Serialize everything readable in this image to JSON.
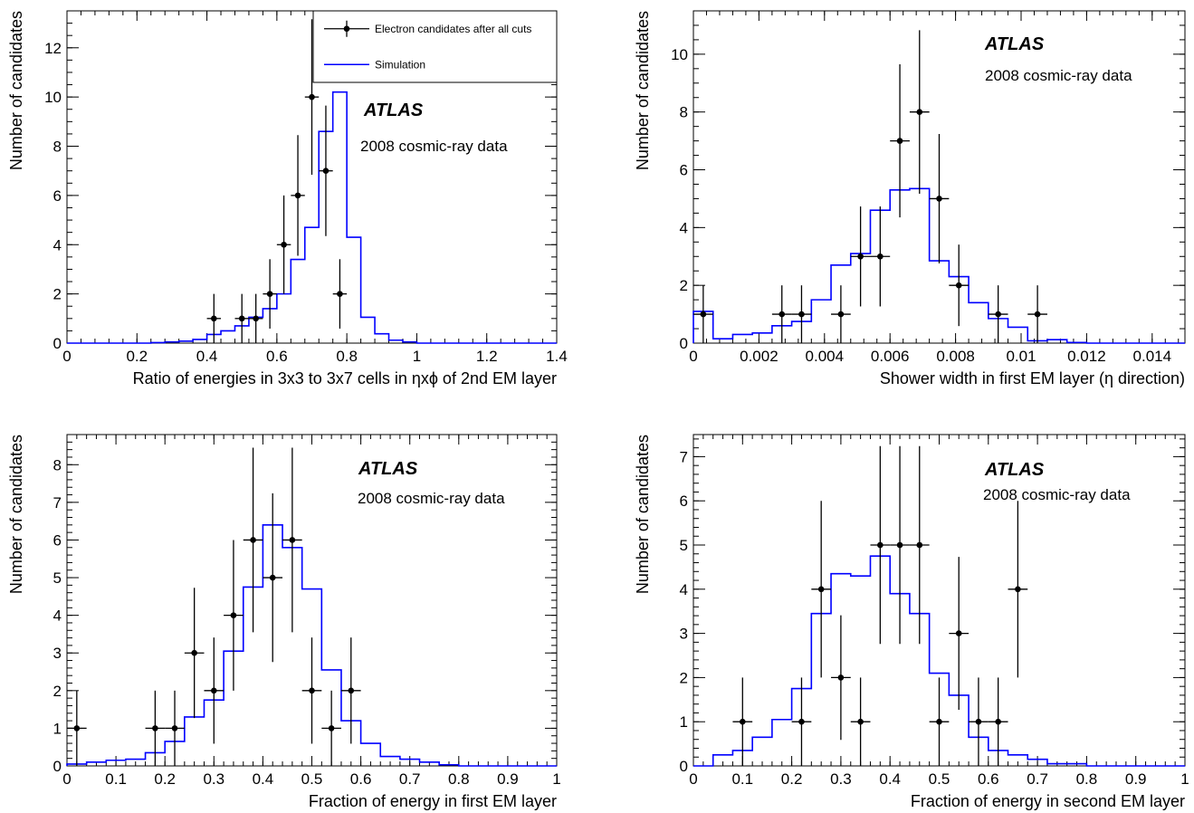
{
  "figure": {
    "panels_count": 4
  },
  "chart_data": [
    {
      "type": "histogram",
      "xlabel": "Ratio of energies in 3x3 to 3x7 cells in ηxϕ of 2nd EM layer",
      "ylabel": "Number of candidates",
      "xlim": [
        0,
        1.4
      ],
      "ylim": [
        0,
        13.5
      ],
      "xticks": [
        0,
        0.2,
        0.4,
        0.6,
        0.8,
        1,
        1.2,
        1.4
      ],
      "xtick_labels": [
        "0",
        "0.2",
        "0.4",
        "0.6",
        "0.8",
        "1",
        "1.2",
        "1.4"
      ],
      "yticks": [
        0,
        2,
        4,
        6,
        8,
        10,
        12
      ],
      "ytick_labels": [
        "0",
        "2",
        "4",
        "6",
        "8",
        "10",
        "12"
      ],
      "atlas_label": "ATLAS",
      "note": "2008 cosmic-ray data",
      "legend": {
        "placement": "top-right",
        "entries": [
          {
            "label": "Electron candidates after all cuts",
            "kind": "marker"
          },
          {
            "label": "Simulation",
            "kind": "line"
          }
        ]
      },
      "simulation": {
        "name": "Simulation",
        "color": "#0000ff",
        "bin_edges": [
          0,
          0.04,
          0.08,
          0.12,
          0.16,
          0.2,
          0.24,
          0.28,
          0.32,
          0.36,
          0.4,
          0.44,
          0.48,
          0.52,
          0.56,
          0.6,
          0.64,
          0.68,
          0.72,
          0.76,
          0.8,
          0.84,
          0.88,
          0.92,
          0.96,
          1.0,
          1.04,
          1.08,
          1.12,
          1.16,
          1.2,
          1.24,
          1.28,
          1.32,
          1.36,
          1.4
        ],
        "values": [
          0,
          0,
          0,
          0,
          0,
          0,
          0.02,
          0.05,
          0.08,
          0.15,
          0.35,
          0.5,
          0.7,
          1.05,
          1.4,
          2.0,
          3.4,
          4.7,
          8.6,
          10.2,
          4.3,
          1.05,
          0.38,
          0.12,
          0.05,
          0,
          0,
          0,
          0,
          0,
          0,
          0,
          0,
          0,
          0
        ]
      },
      "data": {
        "name": "Electron candidates after all cuts",
        "x": [
          0.42,
          0.5,
          0.54,
          0.58,
          0.62,
          0.66,
          0.7,
          0.74,
          0.78
        ],
        "y": [
          1,
          1,
          1,
          2,
          4,
          6,
          10,
          7,
          2
        ],
        "yerr": [
          1.0,
          1.0,
          1.0,
          1.41,
          2.0,
          2.45,
          3.16,
          2.65,
          1.41
        ],
        "xerr": 0.02
      }
    },
    {
      "type": "histogram",
      "xlabel": "Shower width in first EM layer (η direction)",
      "ylabel": "Number of candidates",
      "xlim": [
        0,
        0.015
      ],
      "ylim": [
        0,
        11.5
      ],
      "xticks": [
        0,
        0.002,
        0.004,
        0.006,
        0.008,
        0.01,
        0.012,
        0.014
      ],
      "xtick_labels": [
        "0",
        "0.002",
        "0.004",
        "0.006",
        "0.008",
        "0.01",
        "0.012",
        "0.014"
      ],
      "yticks": [
        0,
        2,
        4,
        6,
        8,
        10
      ],
      "ytick_labels": [
        "0",
        "2",
        "4",
        "6",
        "8",
        "10"
      ],
      "atlas_label": "ATLAS",
      "note": "2008 cosmic-ray data",
      "simulation": {
        "name": "Simulation",
        "color": "#0000ff",
        "bin_edges": [
          0,
          0.0006,
          0.0012,
          0.0018,
          0.0024,
          0.003,
          0.0036,
          0.0042,
          0.0048,
          0.0054,
          0.006,
          0.0066,
          0.0072,
          0.0078,
          0.0084,
          0.009,
          0.0096,
          0.0102,
          0.0108,
          0.0114,
          0.012,
          0.0126,
          0.0132,
          0.0138,
          0.0144,
          0.015
        ],
        "values": [
          1.1,
          0.15,
          0.3,
          0.35,
          0.6,
          0.75,
          1.5,
          2.7,
          3.1,
          4.6,
          5.3,
          5.35,
          2.85,
          2.3,
          1.4,
          0.85,
          0.55,
          0.08,
          0.12,
          0.02,
          0,
          0,
          0,
          0,
          0
        ]
      },
      "data": {
        "name": "Electron candidates after all cuts",
        "x": [
          0.0003,
          0.0027,
          0.0033,
          0.0045,
          0.0051,
          0.0057,
          0.0063,
          0.0069,
          0.0075,
          0.0081,
          0.0093,
          0.0105
        ],
        "y": [
          1,
          1,
          1,
          1,
          3,
          3,
          7,
          8,
          5,
          2,
          1,
          1
        ],
        "yerr": [
          1.0,
          1.0,
          1.0,
          1.0,
          1.73,
          1.73,
          2.65,
          2.83,
          2.24,
          1.41,
          1.0,
          1.0
        ],
        "xerr": 0.0003
      }
    },
    {
      "type": "histogram",
      "xlabel": "Fraction of energy in first EM layer",
      "ylabel": "Number of candidates",
      "xlim": [
        0,
        1
      ],
      "ylim": [
        0,
        8.8
      ],
      "xticks": [
        0,
        0.1,
        0.2,
        0.3,
        0.4,
        0.5,
        0.6,
        0.7,
        0.8,
        0.9,
        1
      ],
      "xtick_labels": [
        "0",
        "0.1",
        "0.2",
        "0.3",
        "0.4",
        "0.5",
        "0.6",
        "0.7",
        "0.8",
        "0.9",
        "1"
      ],
      "yticks": [
        0,
        1,
        2,
        3,
        4,
        5,
        6,
        7,
        8
      ],
      "ytick_labels": [
        "0",
        "1",
        "2",
        "3",
        "4",
        "5",
        "6",
        "7",
        "8"
      ],
      "atlas_label": "ATLAS",
      "note": "2008 cosmic-ray data",
      "simulation": {
        "name": "Simulation",
        "color": "#0000ff",
        "bin_edges": [
          0,
          0.04,
          0.08,
          0.12,
          0.16,
          0.2,
          0.24,
          0.28,
          0.32,
          0.36,
          0.4,
          0.44,
          0.48,
          0.52,
          0.56,
          0.6,
          0.64,
          0.68,
          0.72,
          0.76,
          0.8,
          0.84,
          0.88,
          0.92,
          0.96,
          1.0
        ],
        "values": [
          0.05,
          0.1,
          0.15,
          0.18,
          0.35,
          0.65,
          1.3,
          1.75,
          3.05,
          4.75,
          6.4,
          5.8,
          4.7,
          2.55,
          1.2,
          0.6,
          0.25,
          0.18,
          0.1,
          0.03,
          0,
          0,
          0,
          0,
          0
        ]
      },
      "data": {
        "name": "Electron candidates after all cuts",
        "x": [
          0.02,
          0.18,
          0.22,
          0.26,
          0.3,
          0.34,
          0.38,
          0.42,
          0.46,
          0.5,
          0.54,
          0.58
        ],
        "y": [
          1,
          1,
          1,
          3,
          2,
          4,
          6,
          5,
          6,
          2,
          1,
          2
        ],
        "yerr": [
          1.0,
          1.0,
          1.0,
          1.73,
          1.41,
          2.0,
          2.45,
          2.24,
          2.45,
          1.41,
          1.0,
          1.41
        ],
        "xerr": 0.02
      }
    },
    {
      "type": "histogram",
      "xlabel": "Fraction of energy in second EM layer",
      "ylabel": "Number of candidates",
      "xlim": [
        0,
        1
      ],
      "ylim": [
        0,
        7.5
      ],
      "xticks": [
        0,
        0.1,
        0.2,
        0.3,
        0.4,
        0.5,
        0.6,
        0.7,
        0.8,
        0.9,
        1
      ],
      "xtick_labels": [
        "0",
        "0.1",
        "0.2",
        "0.3",
        "0.4",
        "0.5",
        "0.6",
        "0.7",
        "0.8",
        "0.9",
        "1"
      ],
      "yticks": [
        0,
        1,
        2,
        3,
        4,
        5,
        6,
        7
      ],
      "ytick_labels": [
        "0",
        "1",
        "2",
        "3",
        "4",
        "5",
        "6",
        "7"
      ],
      "atlas_label": "ATLAS",
      "note": "2008 cosmic-ray data",
      "simulation": {
        "name": "Simulation",
        "color": "#0000ff",
        "bin_edges": [
          0,
          0.04,
          0.08,
          0.12,
          0.16,
          0.2,
          0.24,
          0.28,
          0.32,
          0.36,
          0.4,
          0.44,
          0.48,
          0.52,
          0.56,
          0.6,
          0.64,
          0.68,
          0.72,
          0.76,
          0.8,
          0.84,
          0.88,
          0.92,
          0.96,
          1.0
        ],
        "values": [
          0,
          0.25,
          0.35,
          0.65,
          1.05,
          1.75,
          3.45,
          4.35,
          4.3,
          4.75,
          3.9,
          3.45,
          2.1,
          1.6,
          0.65,
          0.35,
          0.25,
          0.15,
          0.05,
          0.05,
          0,
          0,
          0,
          0,
          0
        ]
      },
      "data": {
        "name": "Electron candidates after all cuts",
        "x": [
          0.1,
          0.22,
          0.26,
          0.3,
          0.34,
          0.38,
          0.42,
          0.46,
          0.5,
          0.54,
          0.58,
          0.62,
          0.66
        ],
        "y": [
          1,
          1,
          4,
          2,
          1,
          5,
          5,
          5,
          1,
          3,
          1,
          1,
          4
        ],
        "yerr": [
          1.0,
          1.0,
          2.0,
          1.41,
          1.0,
          2.24,
          2.24,
          2.24,
          1.0,
          1.73,
          1.0,
          1.0,
          2.0
        ],
        "xerr": 0.02
      }
    }
  ]
}
